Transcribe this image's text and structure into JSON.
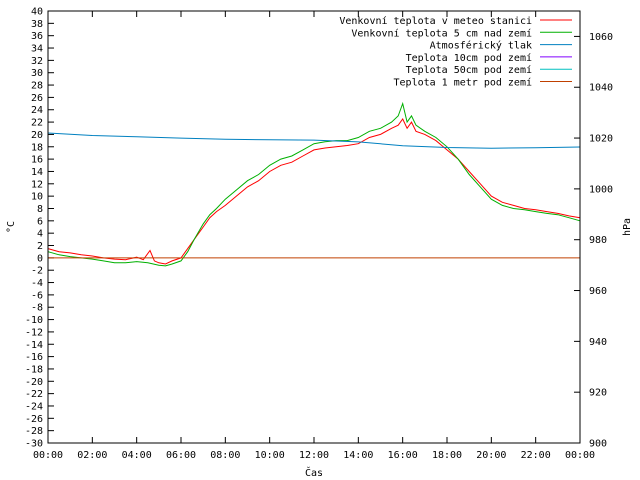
{
  "chart_data": {
    "type": "line",
    "xlabel": "Čas",
    "ylabel_left": "°C",
    "ylabel_right": "hPa",
    "x_ticks": [
      "00:00",
      "02:00",
      "04:00",
      "06:00",
      "08:00",
      "10:00",
      "12:00",
      "14:00",
      "16:00",
      "18:00",
      "20:00",
      "22:00",
      "00:00"
    ],
    "x_range_hours": [
      0,
      24
    ],
    "y_left_range": [
      -30,
      40
    ],
    "y_left_ticks": [
      -30,
      -28,
      -26,
      -24,
      -22,
      -20,
      -18,
      -16,
      -14,
      -12,
      -10,
      -8,
      -6,
      -4,
      -2,
      0,
      2,
      4,
      6,
      8,
      10,
      12,
      14,
      16,
      18,
      20,
      22,
      24,
      26,
      28,
      30,
      32,
      34,
      36,
      38,
      40
    ],
    "y_right_range": [
      900,
      1070
    ],
    "y_right_ticks": [
      900,
      920,
      940,
      960,
      980,
      1000,
      1020,
      1040,
      1060
    ],
    "grid": false,
    "legend_position": "top-right",
    "series": [
      {
        "name": "Venkovní teplota v meteo stanici",
        "color": "#ff0000",
        "axis": "left",
        "x": [
          0,
          0.5,
          1,
          1.5,
          2,
          2.5,
          3,
          3.5,
          4,
          4.3,
          4.6,
          4.8,
          5,
          5.3,
          5.6,
          6,
          6.3,
          6.6,
          7,
          7.3,
          7.6,
          8,
          8.5,
          9,
          9.5,
          10,
          10.5,
          11,
          11.5,
          12,
          12.5,
          13,
          13.5,
          14,
          14.5,
          15,
          15.5,
          15.8,
          16,
          16.2,
          16.4,
          16.6,
          17,
          17.5,
          18,
          18.5,
          19,
          19.5,
          20,
          20.5,
          21,
          21.5,
          22,
          22.5,
          23,
          23.5,
          24
        ],
        "y": [
          1.5,
          1,
          0.8,
          0.5,
          0.3,
          0,
          -0.2,
          -0.3,
          0.1,
          -0.3,
          1.2,
          -0.5,
          -0.8,
          -1,
          -0.5,
          0,
          1.5,
          3,
          5,
          6.5,
          7.5,
          8.5,
          10,
          11.5,
          12.5,
          14,
          15,
          15.5,
          16.5,
          17.5,
          17.8,
          18,
          18.2,
          18.5,
          19.5,
          20,
          21,
          21.5,
          22.5,
          21,
          22,
          20.5,
          20,
          19,
          17.5,
          16,
          14,
          12,
          10,
          9,
          8.5,
          8,
          7.8,
          7.5,
          7.2,
          6.8,
          6.5
        ]
      },
      {
        "name": "Venkovní teplota 5 cm nad zemí",
        "color": "#00b000",
        "axis": "left",
        "x": [
          0,
          0.5,
          1,
          1.5,
          2,
          2.5,
          3,
          3.5,
          4,
          4.5,
          5,
          5.3,
          5.6,
          6,
          6.3,
          6.6,
          7,
          7.3,
          7.6,
          8,
          8.5,
          9,
          9.5,
          10,
          10.5,
          11,
          11.5,
          12,
          12.5,
          13,
          13.5,
          14,
          14.5,
          15,
          15.5,
          15.8,
          16,
          16.2,
          16.4,
          16.6,
          17,
          17.5,
          18,
          18.5,
          19,
          19.5,
          20,
          20.5,
          21,
          21.5,
          22,
          22.5,
          23,
          23.5,
          24
        ],
        "y": [
          1,
          0.5,
          0.2,
          0,
          -0.2,
          -0.5,
          -0.8,
          -0.8,
          -0.6,
          -0.8,
          -1.2,
          -1.3,
          -1,
          -0.5,
          1,
          3,
          5.5,
          7,
          8,
          9.5,
          11,
          12.5,
          13.5,
          15,
          16,
          16.5,
          17.5,
          18.5,
          18.8,
          19,
          19,
          19.5,
          20.5,
          21,
          22,
          23,
          25,
          22,
          23,
          21.5,
          20.5,
          19.5,
          18,
          16,
          13.5,
          11.5,
          9.5,
          8.5,
          8,
          7.8,
          7.5,
          7.2,
          7,
          6.5,
          6
        ]
      },
      {
        "name": "Atmosférický tlak",
        "color": "#0080c0",
        "axis": "right",
        "x": [
          0,
          2,
          4,
          6,
          8,
          10,
          12,
          14,
          16,
          18,
          20,
          22,
          24
        ],
        "y": [
          1022,
          1021,
          1020.5,
          1020,
          1019.5,
          1019.3,
          1019.2,
          1018.5,
          1017,
          1016.3,
          1016,
          1016.2,
          1016.5
        ]
      },
      {
        "name": "Teplota 10cm pod zemí",
        "color": "#8000ff",
        "axis": "left",
        "x": [],
        "y": []
      },
      {
        "name": "Teplota 50cm pod zemí",
        "color": "#00c0c0",
        "axis": "left",
        "x": [],
        "y": []
      },
      {
        "name": "Teplota 1 metr pod zemí",
        "color": "#c04000",
        "axis": "left",
        "x": [
          0,
          24
        ],
        "y": [
          0,
          0
        ]
      }
    ]
  }
}
